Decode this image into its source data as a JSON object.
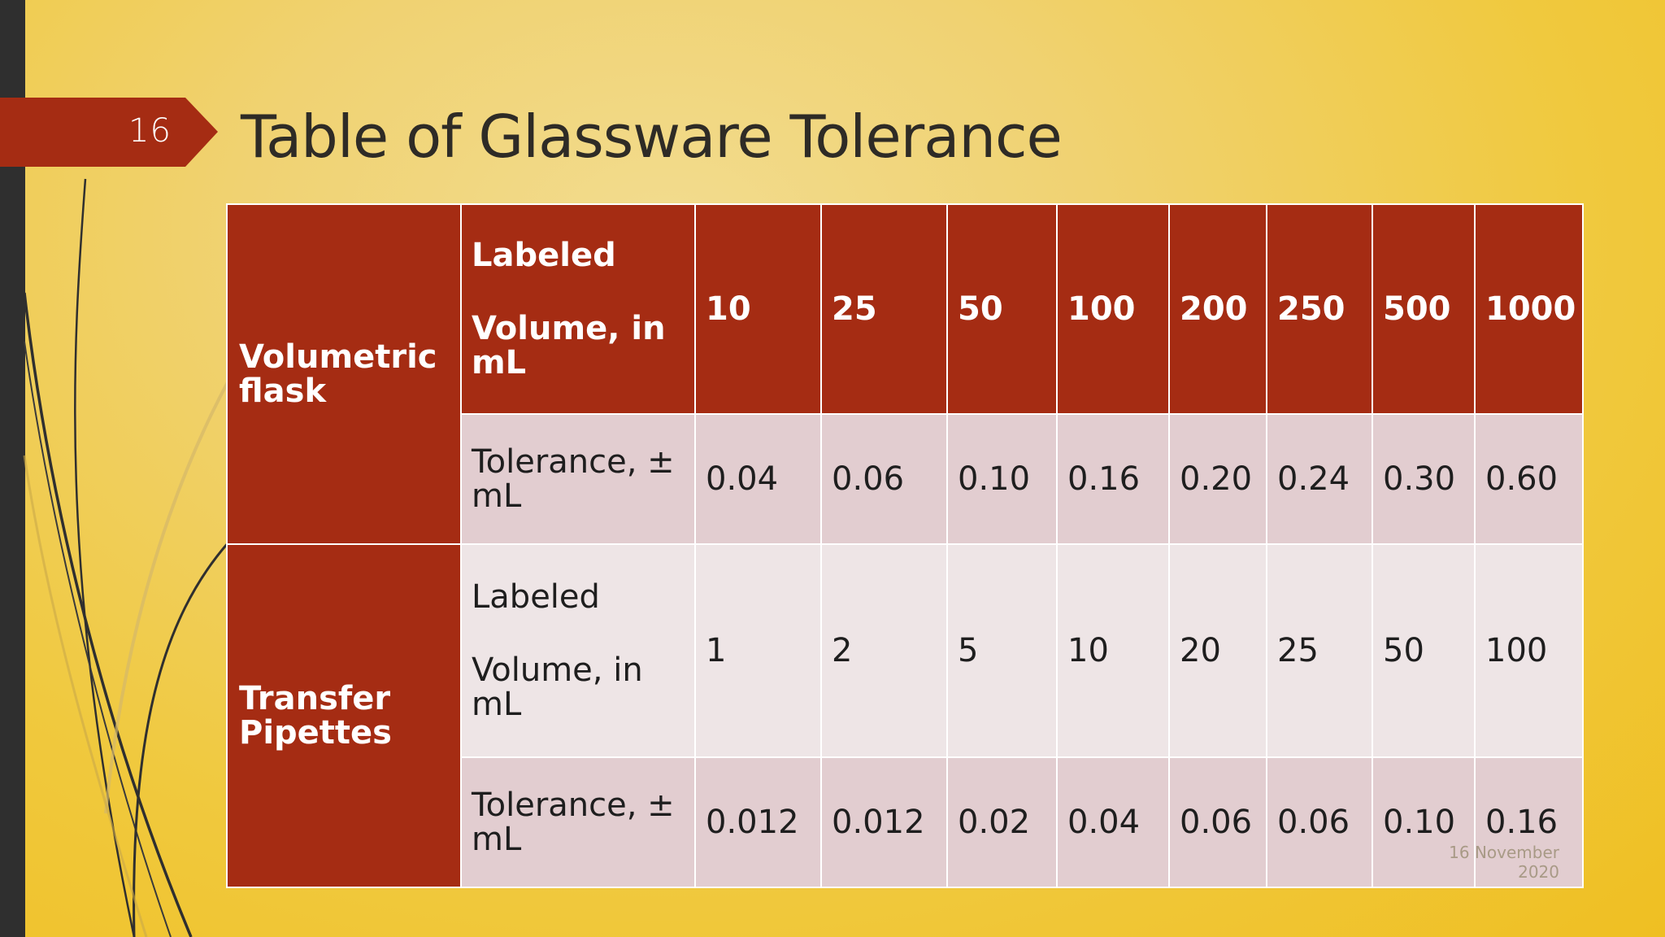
{
  "slide": {
    "number": "16",
    "title": "Table of Glassware Tolerance",
    "date": "16 November 2020",
    "accent_color": "#a52c13",
    "background_color": "#f0c93e"
  },
  "table": {
    "groups": [
      {
        "name": "Volumetric flask",
        "rows": [
          {
            "label_line1": "Labeled",
            "label_line2": "Volume, in mL",
            "values": [
              "10",
              "25",
              "50",
              "100",
              "200",
              "250",
              "500",
              "1000"
            ]
          },
          {
            "label": "Tolerance, ± mL",
            "values": [
              "0.04",
              "0.06",
              "0.10",
              "0.16",
              "0.20",
              "0.24",
              "0.30",
              "0.60"
            ]
          }
        ]
      },
      {
        "name": "Transfer Pipettes",
        "rows": [
          {
            "label_line1": "Labeled",
            "label_line2": "Volume, in mL",
            "values": [
              "1",
              "2",
              "5",
              "10",
              "20",
              "25",
              "50",
              "100"
            ]
          },
          {
            "label": "Tolerance, ± mL",
            "values": [
              "0.012",
              "0.012",
              "0.02",
              "0.04",
              "0.06",
              "0.06",
              "0.10",
              "0.16"
            ]
          }
        ]
      }
    ]
  }
}
